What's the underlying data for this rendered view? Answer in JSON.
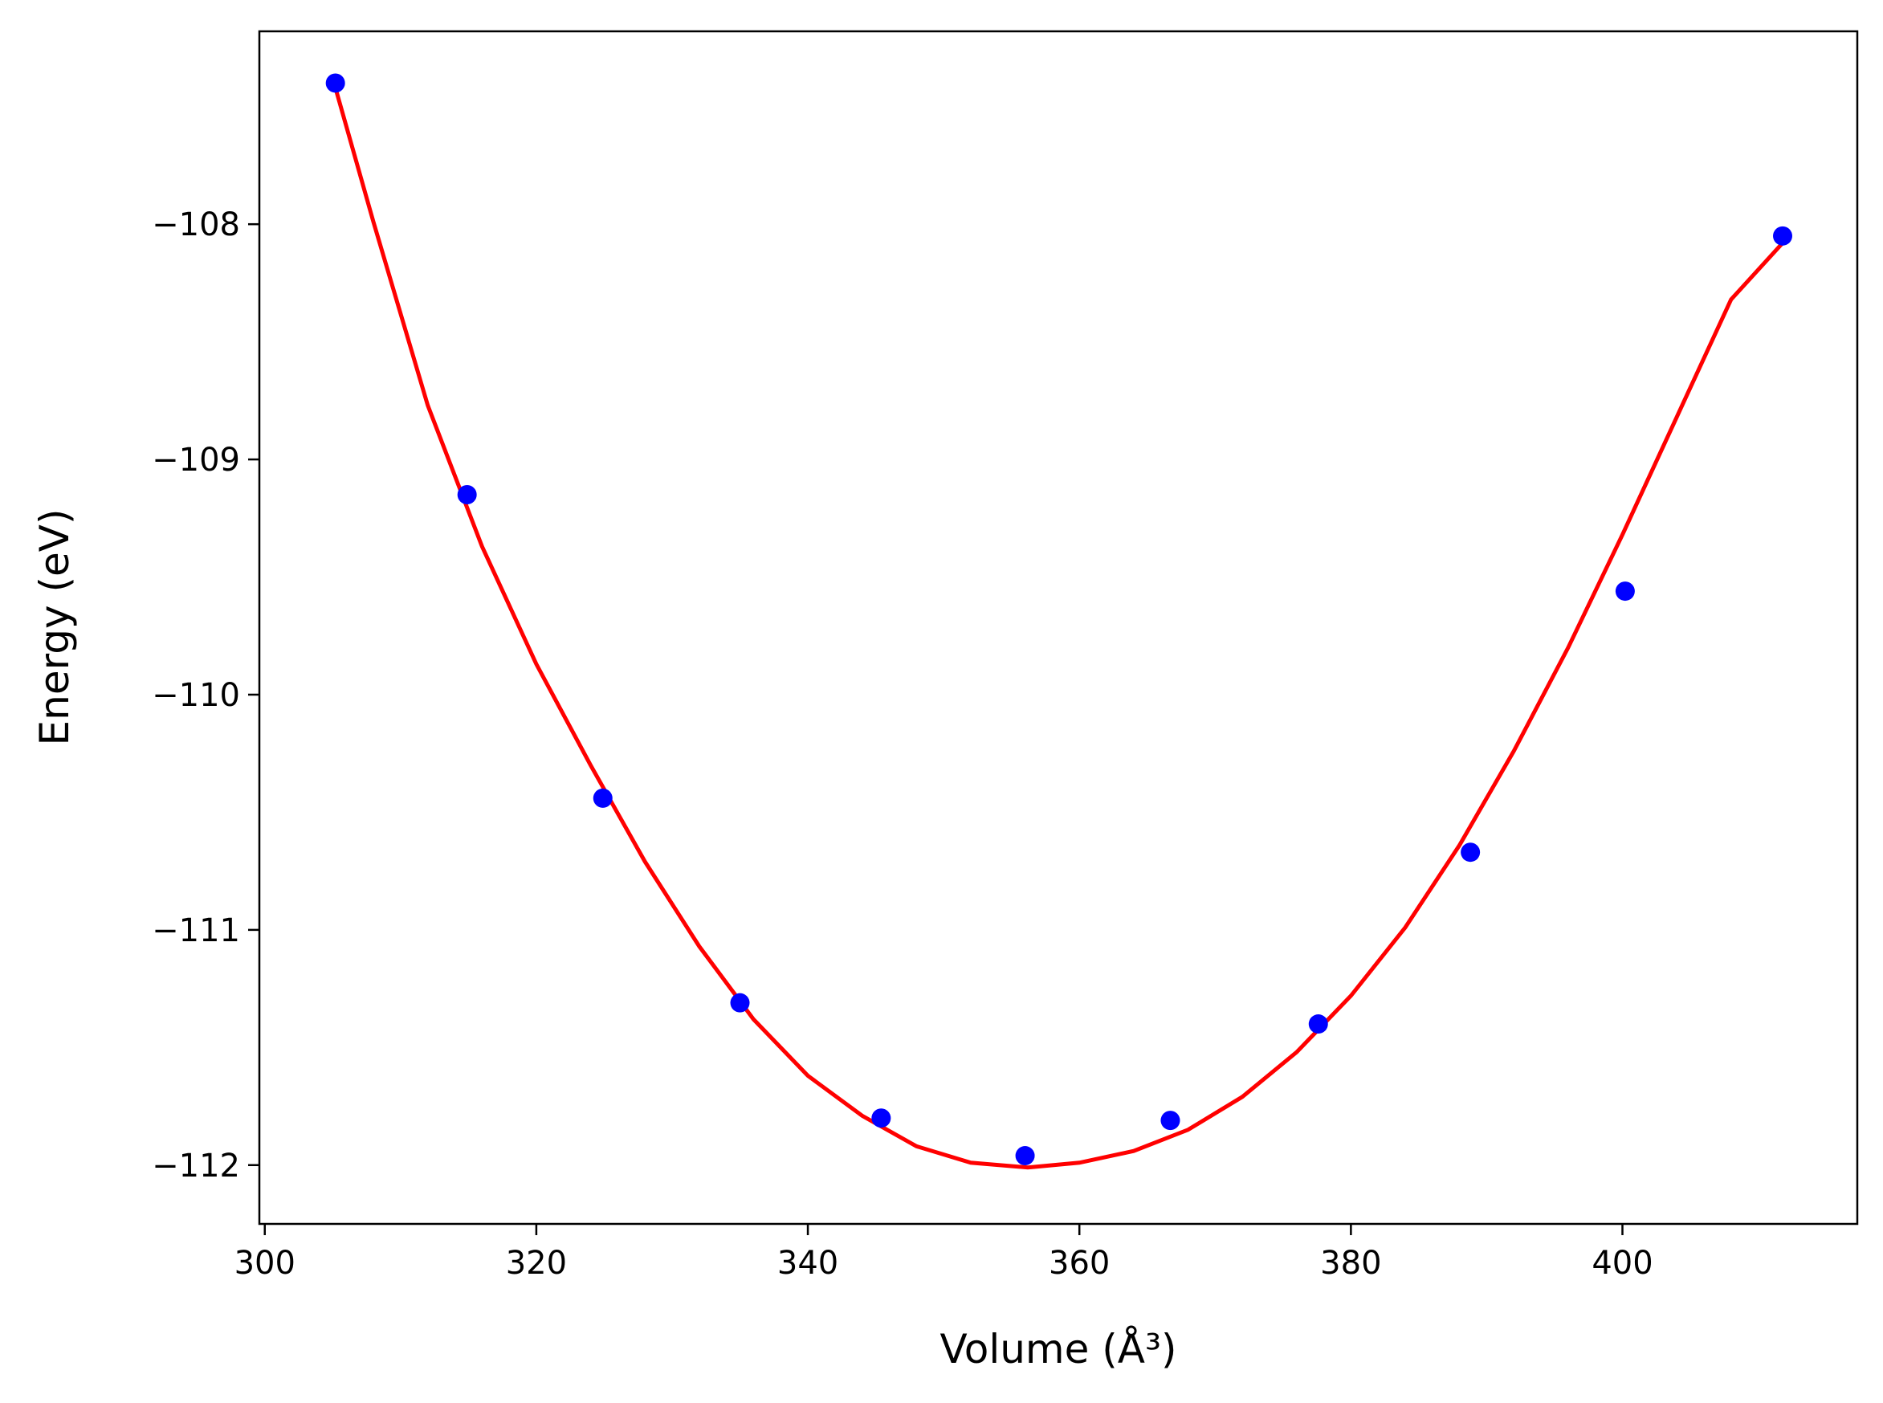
{
  "chart_data": {
    "type": "scatter",
    "title": "",
    "xlabel": "Volume (Å³)",
    "ylabel": "Energy (eV)",
    "xlim": [
      299.6,
      417.3
    ],
    "ylim": [
      -112.25,
      -107.18
    ],
    "xticks": [
      300,
      320,
      340,
      360,
      380,
      400
    ],
    "yticks": [
      -112,
      -111,
      -110,
      -109,
      -108
    ],
    "x_tick_labels": [
      "300",
      "320",
      "340",
      "360",
      "380",
      "400"
    ],
    "y_tick_labels": [
      "−112",
      "−111",
      "−110",
      "−109",
      "−108"
    ],
    "grid": false,
    "series": [
      {
        "kind": "points",
        "color": "#0000ff",
        "x": [
          305.2,
          314.9,
          324.9,
          335.0,
          345.4,
          356.0,
          366.7,
          377.6,
          388.8,
          400.2,
          411.8
        ],
        "y": [
          -107.4,
          -109.15,
          -110.44,
          -111.31,
          -111.8,
          -111.96,
          -111.81,
          -111.4,
          -110.67,
          -109.56,
          -108.05
        ]
      },
      {
        "kind": "fit-line",
        "color": "#ff0000",
        "x": [
          305.2,
          308,
          312,
          316,
          320,
          324,
          328,
          332,
          336,
          340,
          344,
          348,
          352,
          356.2,
          360,
          364,
          368,
          372,
          376,
          380,
          384,
          388,
          392,
          396,
          400,
          404,
          408,
          411.8
        ],
        "y": [
          -107.42,
          -107.99,
          -108.77,
          -109.37,
          -109.87,
          -110.3,
          -110.71,
          -111.07,
          -111.38,
          -111.62,
          -111.79,
          -111.92,
          -111.99,
          -112.01,
          -111.99,
          -111.94,
          -111.85,
          -111.71,
          -111.52,
          -111.28,
          -110.99,
          -110.64,
          -110.24,
          -109.8,
          -109.32,
          -108.82,
          -108.32,
          -108.08
        ]
      }
    ]
  }
}
